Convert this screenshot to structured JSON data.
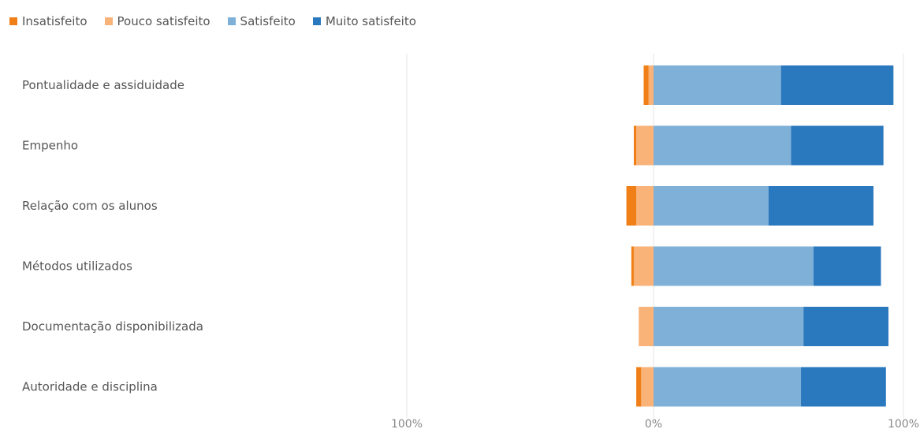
{
  "chart_data": {
    "type": "bar",
    "orientation": "horizontal",
    "stacked": "diverging",
    "categories": [
      "Pontualidade e assiduidade",
      "Empenho",
      "Relação com os alunos",
      "Métodos utilizados",
      "Documentação disponibilizada",
      "Autoridade e disciplina"
    ],
    "series": [
      {
        "name": "Insatisfeito",
        "color": "#F07F17",
        "values": [
          2,
          1,
          4,
          1,
          0,
          2
        ]
      },
      {
        "name": "Pouco satisfeito",
        "color": "#F9B379",
        "values": [
          2,
          7,
          7,
          8,
          6,
          5
        ]
      },
      {
        "name": "Satisfeito",
        "color": "#7EB0D8",
        "values": [
          51,
          55,
          46,
          64,
          60,
          59
        ]
      },
      {
        "name": "Muito satisfeito",
        "color": "#2A78BE",
        "values": [
          45,
          37,
          42,
          27,
          34,
          34
        ]
      }
    ],
    "negative_series": [
      "Insatisfeito",
      "Pouco satisfeito"
    ],
    "positive_series": [
      "Satisfeito",
      "Muito satisfeito"
    ],
    "xlim": [
      -100,
      100
    ],
    "ticks": [
      {
        "value": -100,
        "label": "100%"
      },
      {
        "value": 0,
        "label": "0%"
      },
      {
        "value": 100,
        "label": "100%"
      }
    ],
    "legend_position": "top-left",
    "grid": true
  }
}
